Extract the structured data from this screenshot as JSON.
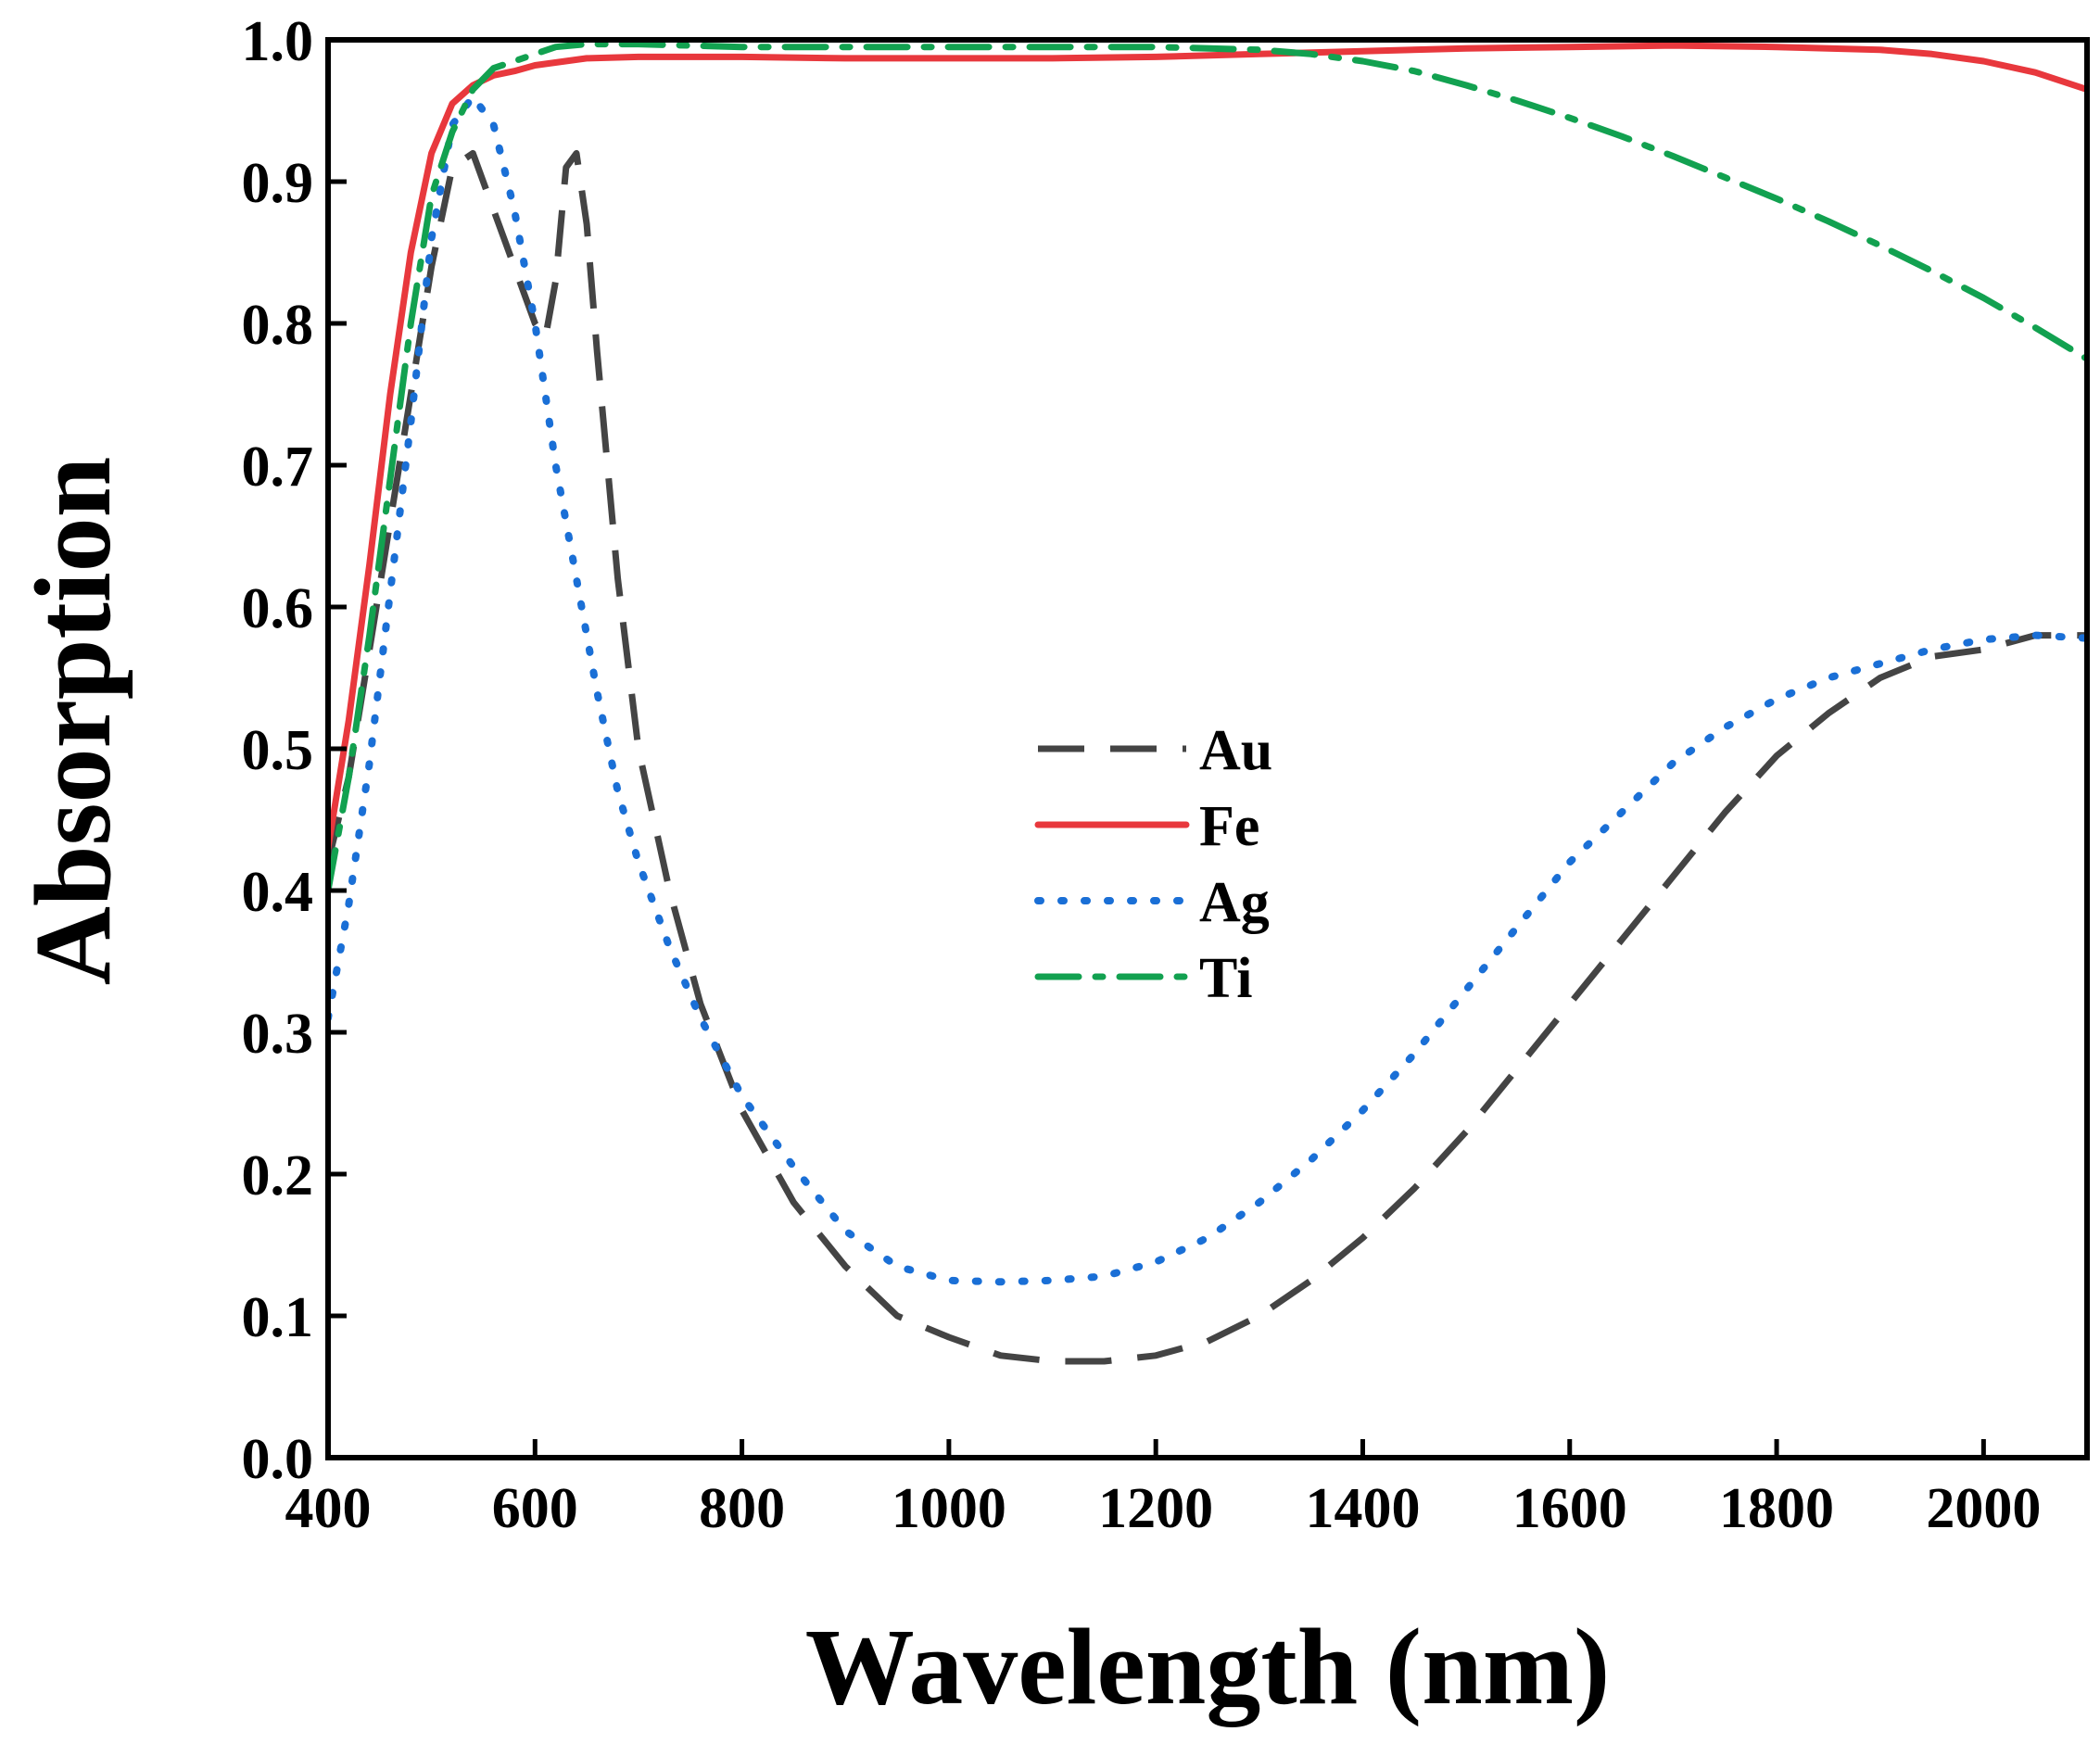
{
  "chart_data": {
    "type": "line",
    "title": "",
    "xlabel": "Wavelength (nm)",
    "ylabel": "Absorption",
    "xlim": [
      400,
      2100
    ],
    "ylim": [
      0.0,
      1.0
    ],
    "xticks": [
      400,
      600,
      800,
      1000,
      1200,
      1400,
      1600,
      1800,
      2000
    ],
    "xtick_labels": [
      "400",
      "600",
      "800",
      "1000",
      "1200",
      "1400",
      "1600",
      "1800",
      "2000"
    ],
    "yticks": [
      0.0,
      0.1,
      0.2,
      0.3,
      0.4,
      0.5,
      0.6,
      0.7,
      0.8,
      0.9,
      1.0
    ],
    "ytick_labels": [
      "0.0",
      "0.1",
      "0.2",
      "0.3",
      "0.4",
      "0.5",
      "0.6",
      "0.7",
      "0.8",
      "0.9",
      "1.0"
    ],
    "grid": false,
    "legend_position": "center",
    "series": [
      {
        "name": "Au",
        "color": "#444444",
        "dash": "dashed",
        "x": [
          400,
          420,
          440,
          460,
          480,
          500,
          520,
          540,
          560,
          580,
          600,
          610,
          620,
          630,
          640,
          650,
          660,
          680,
          700,
          730,
          760,
          800,
          850,
          900,
          950,
          1000,
          1050,
          1100,
          1150,
          1200,
          1250,
          1300,
          1350,
          1400,
          1450,
          1500,
          1550,
          1600,
          1650,
          1700,
          1750,
          1800,
          1850,
          1900,
          1950,
          2000,
          2050,
          2100
        ],
        "y": [
          0.42,
          0.48,
          0.57,
          0.66,
          0.75,
          0.84,
          0.91,
          0.92,
          0.88,
          0.84,
          0.8,
          0.79,
          0.83,
          0.91,
          0.92,
          0.87,
          0.78,
          0.62,
          0.5,
          0.4,
          0.32,
          0.245,
          0.18,
          0.135,
          0.1,
          0.085,
          0.072,
          0.068,
          0.068,
          0.072,
          0.082,
          0.1,
          0.125,
          0.155,
          0.19,
          0.23,
          0.275,
          0.32,
          0.365,
          0.41,
          0.455,
          0.495,
          0.525,
          0.55,
          0.565,
          0.57,
          0.58,
          0.58
        ]
      },
      {
        "name": "Fe",
        "color": "#e8383d",
        "dash": "solid",
        "x": [
          400,
          420,
          440,
          460,
          480,
          500,
          520,
          540,
          560,
          580,
          600,
          650,
          700,
          800,
          900,
          1000,
          1100,
          1200,
          1300,
          1400,
          1500,
          1600,
          1700,
          1800,
          1900,
          1950,
          2000,
          2050,
          2100
        ],
        "y": [
          0.43,
          0.52,
          0.63,
          0.75,
          0.85,
          0.92,
          0.955,
          0.968,
          0.975,
          0.978,
          0.982,
          0.987,
          0.988,
          0.988,
          0.987,
          0.987,
          0.987,
          0.988,
          0.99,
          0.992,
          0.994,
          0.995,
          0.996,
          0.995,
          0.993,
          0.99,
          0.985,
          0.977,
          0.965
        ]
      },
      {
        "name": "Ag",
        "color": "#1a6fd6",
        "dash": "dotted",
        "x": [
          400,
          420,
          440,
          460,
          480,
          500,
          520,
          540,
          560,
          580,
          600,
          620,
          640,
          660,
          680,
          700,
          730,
          760,
          800,
          850,
          900,
          950,
          1000,
          1050,
          1100,
          1150,
          1200,
          1250,
          1300,
          1350,
          1400,
          1450,
          1500,
          1550,
          1600,
          1650,
          1700,
          1750,
          1800,
          1850,
          1900,
          1950,
          2000,
          2050,
          2100
        ],
        "y": [
          0.31,
          0.39,
          0.49,
          0.61,
          0.73,
          0.86,
          0.94,
          0.96,
          0.94,
          0.88,
          0.8,
          0.7,
          0.62,
          0.54,
          0.47,
          0.42,
          0.36,
          0.31,
          0.255,
          0.205,
          0.16,
          0.135,
          0.125,
          0.124,
          0.125,
          0.128,
          0.138,
          0.155,
          0.18,
          0.21,
          0.245,
          0.285,
          0.33,
          0.375,
          0.42,
          0.455,
          0.49,
          0.515,
          0.535,
          0.55,
          0.56,
          0.57,
          0.577,
          0.58,
          0.578
        ]
      },
      {
        "name": "Ti",
        "color": "#12a150",
        "dash": "dashdot",
        "x": [
          400,
          420,
          440,
          460,
          480,
          500,
          520,
          540,
          560,
          580,
          600,
          620,
          650,
          700,
          800,
          900,
          1000,
          1100,
          1200,
          1300,
          1350,
          1400,
          1450,
          1500,
          1550,
          1600,
          1650,
          1700,
          1750,
          1800,
          1850,
          1900,
          1950,
          2000,
          2050,
          2100
        ],
        "y": [
          0.4,
          0.48,
          0.58,
          0.69,
          0.8,
          0.89,
          0.935,
          0.965,
          0.98,
          0.985,
          0.99,
          0.995,
          0.997,
          0.997,
          0.995,
          0.995,
          0.995,
          0.995,
          0.995,
          0.993,
          0.99,
          0.985,
          0.978,
          0.968,
          0.957,
          0.945,
          0.932,
          0.918,
          0.903,
          0.888,
          0.872,
          0.855,
          0.837,
          0.818,
          0.797,
          0.775
        ]
      }
    ]
  }
}
